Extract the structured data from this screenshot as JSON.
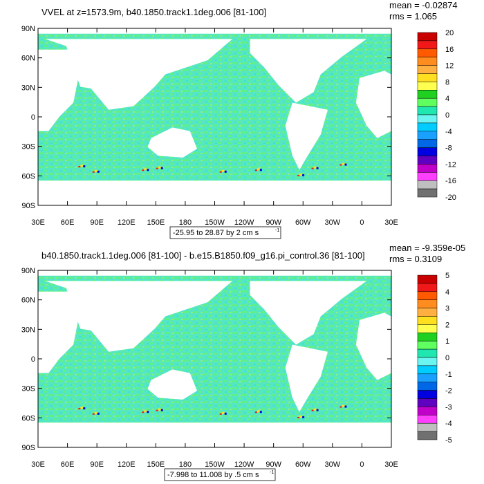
{
  "colors": {
    "land": "#ffffff",
    "frame": "#000000",
    "ocean_base": "#55e6c3"
  },
  "chart_data": [
    {
      "type": "heatmap",
      "title": "VVEL at z=1573.9m, b40.1850.track1.1deg.006 [81-100]",
      "stats": {
        "mean": "mean = -0.02874",
        "rms": "rms = 1.065"
      },
      "range_label": "-25.95 to 28.87 by 2 cm s",
      "range_unit_exp": "-1",
      "y_ticks": [
        "90N",
        "60N",
        "30N",
        "0",
        "30S",
        "60S",
        "90S"
      ],
      "x_ticks": [
        "30E",
        "60E",
        "90E",
        "120E",
        "150E",
        "180",
        "150W",
        "120W",
        "90W",
        "60W",
        "30W",
        "0",
        "30E"
      ],
      "colorbar_labels": [
        "20",
        "16",
        "12",
        "8",
        "4",
        "0",
        "-4",
        "-8",
        "-12",
        "-16",
        "-20"
      ],
      "colorbar_colors": [
        "#c80000",
        "#f01818",
        "#ff5a00",
        "#ff8c1e",
        "#ffb040",
        "#ffe020",
        "#ffff50",
        "#20d020",
        "#60ff60",
        "#20e6b0",
        "#6af5f0",
        "#00ccff",
        "#1aa0ff",
        "#0068e6",
        "#0000e0",
        "#6000c0",
        "#c000c8",
        "#ff40ff",
        "#bfbfbf",
        "#707070"
      ],
      "value_range": [
        -25.95,
        28.87
      ],
      "interval": 2,
      "units": "cm s-1"
    },
    {
      "type": "heatmap",
      "title": "b40.1850.track1.1deg.006 [81-100] - b.e15.B1850.f09_g16.pi_control.36 [81-100]",
      "stats": {
        "mean": "mean = -9.359e-05",
        "rms": "rms = 0.3109"
      },
      "range_label": "-7.998 to 11.008 by .5 cm s",
      "range_unit_exp": "-1",
      "y_ticks": [
        "90N",
        "60N",
        "30N",
        "0",
        "30S",
        "60S",
        "90S"
      ],
      "x_ticks": [
        "30E",
        "60E",
        "90E",
        "120E",
        "150E",
        "180",
        "150W",
        "120W",
        "90W",
        "60W",
        "30W",
        "0",
        "30E"
      ],
      "colorbar_labels": [
        "5",
        "4",
        "3",
        "2",
        "1",
        "0",
        "-1",
        "-2",
        "-3",
        "-4",
        "-5"
      ],
      "colorbar_colors": [
        "#c80000",
        "#f01818",
        "#ff5a00",
        "#ff8c1e",
        "#ffb040",
        "#ffe020",
        "#ffff50",
        "#20d020",
        "#60ff60",
        "#20e6b0",
        "#6af5f0",
        "#00ccff",
        "#1aa0ff",
        "#0068e6",
        "#0000e0",
        "#6000c0",
        "#c000c8",
        "#ff40ff",
        "#bfbfbf",
        "#707070"
      ],
      "value_range": [
        -7.998,
        11.008
      ],
      "interval": 0.5,
      "units": "cm s-1"
    }
  ]
}
